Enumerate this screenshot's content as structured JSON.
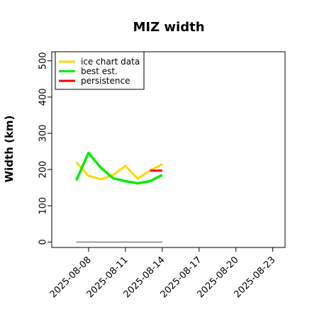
{
  "chart_data": {
    "type": "line",
    "title": "MIZ width",
    "xlabel": "",
    "ylabel": "Width (km)",
    "x_ticks": [
      "2025-08-08",
      "2025-08-11",
      "2025-08-14",
      "2025-08-17",
      "2025-08-20",
      "2025-08-23"
    ],
    "xlim": [
      "2025-08-05",
      "2025-08-24"
    ],
    "ylim": [
      -15,
      525
    ],
    "y_ticks": [
      0,
      100,
      200,
      300,
      400,
      500
    ],
    "grid": false,
    "legend_position": "top-left",
    "series": [
      {
        "name": "ice chart data",
        "color": "#FFD700",
        "x": [
          "2025-08-07",
          "2025-08-08",
          "2025-08-09",
          "2025-08-10",
          "2025-08-11",
          "2025-08-12",
          "2025-08-13",
          "2025-08-14"
        ],
        "y": [
          220,
          183,
          173,
          185,
          210,
          175,
          197,
          215
        ]
      },
      {
        "name": "best est.",
        "color": "#00EE00",
        "x": [
          "2025-08-07",
          "2025-08-08",
          "2025-08-09",
          "2025-08-10",
          "2025-08-11",
          "2025-08-12",
          "2025-08-13",
          "2025-08-14"
        ],
        "y": [
          170,
          246,
          205,
          176,
          168,
          162,
          168,
          185
        ]
      },
      {
        "name": "persistence",
        "color": "#FF0000",
        "x": [
          "2025-08-13",
          "2025-08-14"
        ],
        "y": [
          197,
          197
        ]
      }
    ],
    "baseline": {
      "color": "#808080",
      "x": [
        "2025-08-07",
        "2025-08-14"
      ],
      "y": [
        0,
        0
      ]
    }
  }
}
